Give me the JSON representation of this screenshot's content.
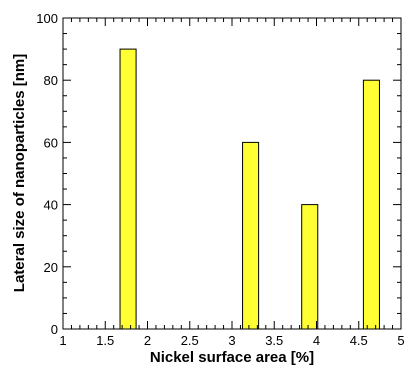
{
  "chart_data": {
    "type": "bar",
    "xlabel": "Nickel surface area [%]",
    "ylabel": "Lateral size of nanoparticles [nm]",
    "xlim": [
      1,
      5
    ],
    "ylim": [
      0,
      100
    ],
    "x_ticks": [
      "1",
      "1.5",
      "2",
      "2.5",
      "3",
      "3.5",
      "4",
      "4.5",
      "5"
    ],
    "y_ticks": [
      "0",
      "20",
      "40",
      "60",
      "80",
      "100"
    ],
    "points": [
      {
        "x": 1.77,
        "y": 90
      },
      {
        "x": 3.22,
        "y": 60
      },
      {
        "x": 3.92,
        "y": 40
      },
      {
        "x": 4.65,
        "y": 80
      }
    ],
    "bar_width_data": 0.19,
    "bar_color": "#ffff33",
    "bar_edge_color": "#000000",
    "grid": false,
    "legend": "none"
  }
}
